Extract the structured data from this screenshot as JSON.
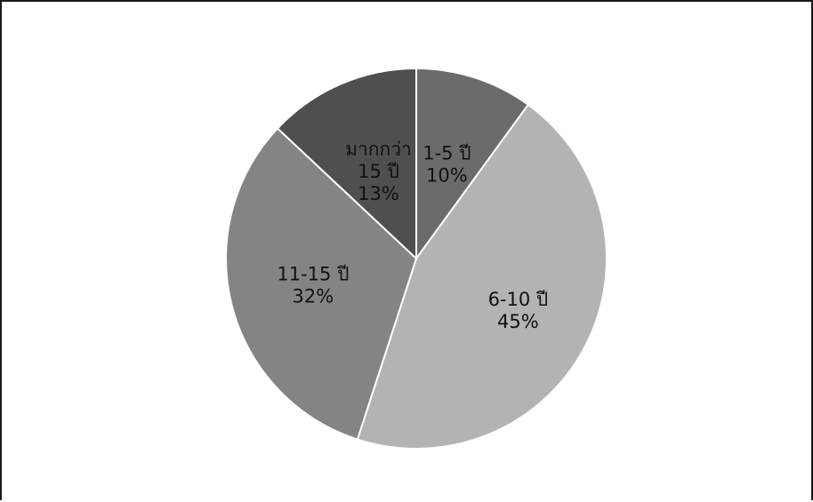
{
  "chart_data": {
    "type": "pie",
    "title": "",
    "slices": [
      {
        "label": "1-5 ปี",
        "value": 10,
        "value_label": "10%",
        "color": "#6b6b6b"
      },
      {
        "label": "6-10 ปี",
        "value": 45,
        "value_label": "45%",
        "color": "#b3b3b3"
      },
      {
        "label": "11-15 ปี",
        "value": 32,
        "value_label": "32%",
        "color": "#848484"
      },
      {
        "label": "มากกว่า 15 ปี",
        "value": 13,
        "value_label": "13%",
        "color": "#4f4f4f"
      }
    ],
    "start_angle": "12 o'clock",
    "direction": "clockwise",
    "legend": "none",
    "data_labels": "inside"
  }
}
